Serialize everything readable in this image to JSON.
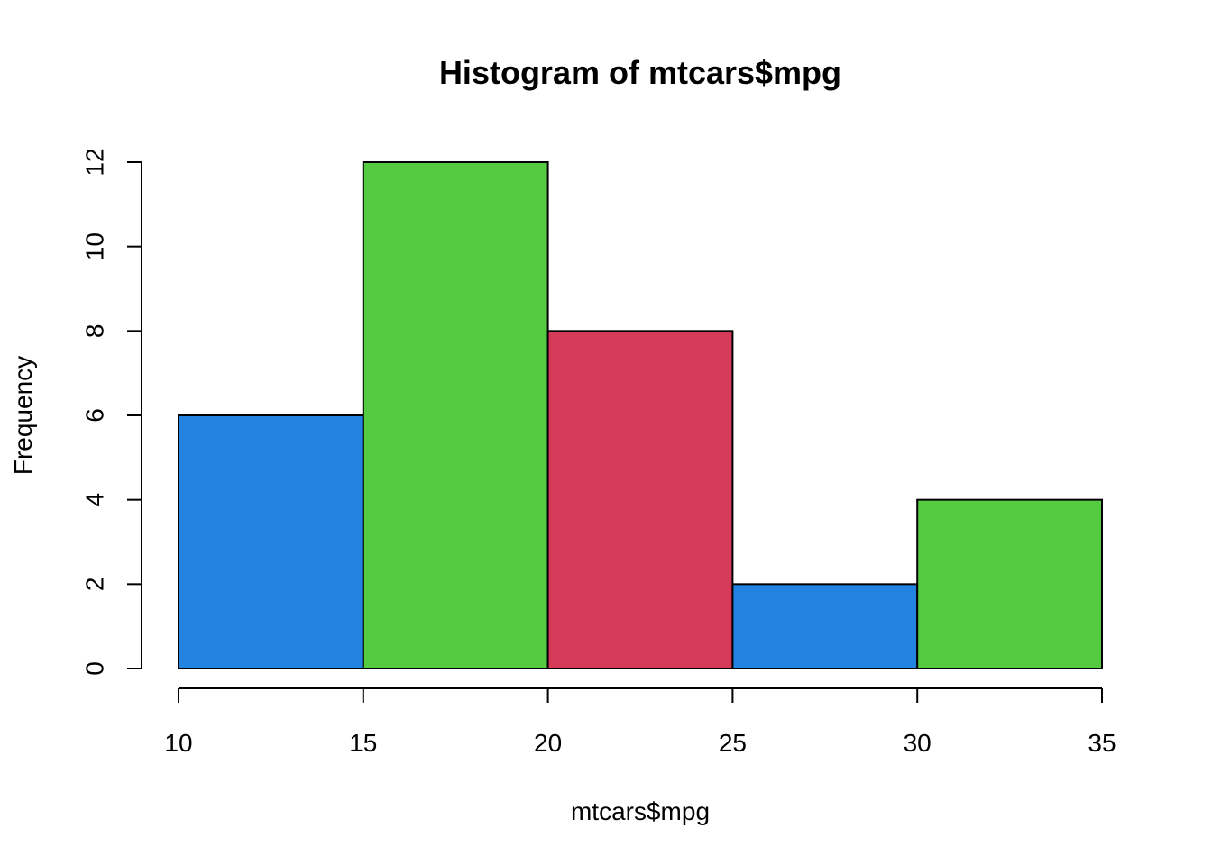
{
  "chart_data": {
    "type": "bar",
    "title": "Histogram of mtcars$mpg",
    "xlabel": "mtcars$mpg",
    "ylabel": "Frequency",
    "bins": [
      {
        "start": 10,
        "end": 15,
        "count": 6,
        "color": "#2283E0"
      },
      {
        "start": 15,
        "end": 20,
        "count": 12,
        "color": "#54CB41"
      },
      {
        "start": 20,
        "end": 25,
        "count": 8,
        "color": "#D53A58"
      },
      {
        "start": 25,
        "end": 30,
        "count": 2,
        "color": "#2283E0"
      },
      {
        "start": 30,
        "end": 35,
        "count": 4,
        "color": "#54CB41"
      }
    ],
    "xlim": [
      10,
      35
    ],
    "ylim": [
      0,
      12
    ],
    "xticks": [
      "10",
      "15",
      "20",
      "25",
      "30",
      "35"
    ],
    "yticks": [
      "0",
      "2",
      "4",
      "6",
      "8",
      "10",
      "12"
    ],
    "grid": false,
    "legend": "none"
  }
}
